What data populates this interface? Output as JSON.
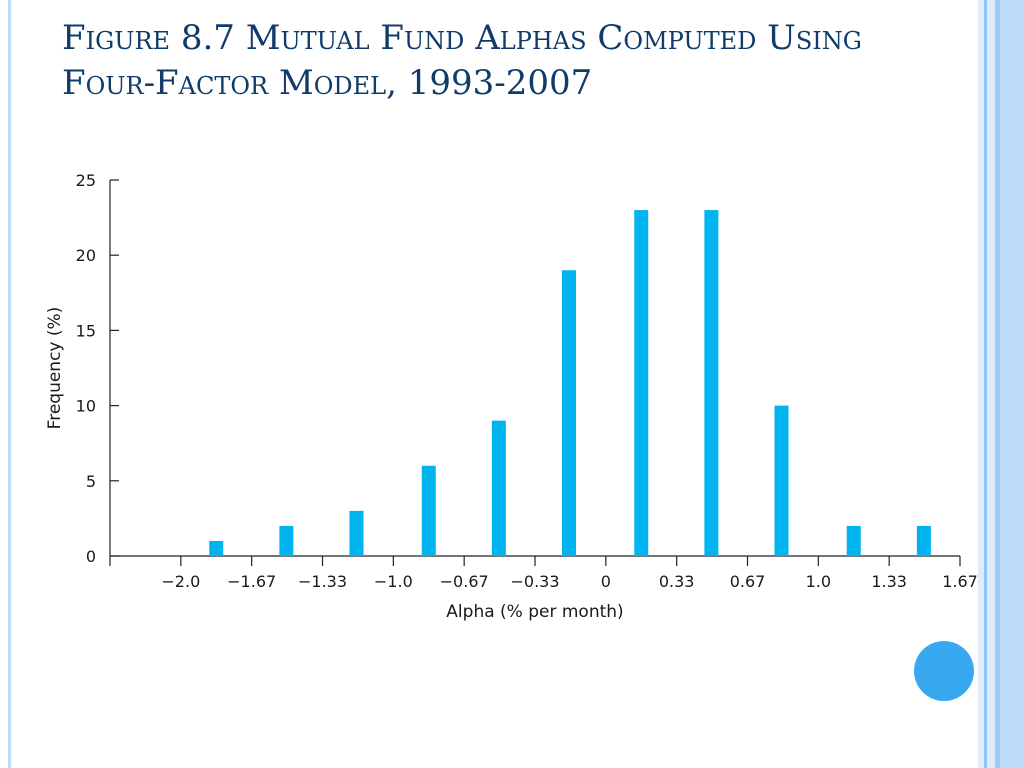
{
  "slide": {
    "title": "Figure 8.7 Mutual Fund Alphas Computed Using Four-Factor Model, 1993-2007"
  },
  "colors": {
    "title": "#103b6a",
    "bar": "#00b5ef",
    "border_light": "#bcdcf8",
    "border_mid": "#8cc4f2",
    "accent_circle": "#38a8f0"
  },
  "chart_data": {
    "type": "bar",
    "xlabel": "Alpha (% per month)",
    "ylabel": "Frequency (%)",
    "ylim": [
      0,
      25
    ],
    "xlim": [
      -2.33,
      1.67
    ],
    "yticks": [
      0,
      5,
      10,
      15,
      20,
      25
    ],
    "xtick_labels": [
      "−2.0",
      "−1.67",
      "−1.33",
      "−1.0",
      "−0.67",
      "−0.33",
      "0",
      "0.33",
      "0.67",
      "1.0",
      "1.33",
      "1.67"
    ],
    "grid": false,
    "bar_x": [
      -1.83,
      -1.5,
      -1.17,
      -0.83,
      -0.5,
      -0.17,
      0.17,
      0.5,
      0.83,
      1.17,
      1.5
    ],
    "values": [
      1,
      2,
      3,
      6,
      9,
      19,
      23,
      23,
      10,
      2,
      2
    ]
  }
}
